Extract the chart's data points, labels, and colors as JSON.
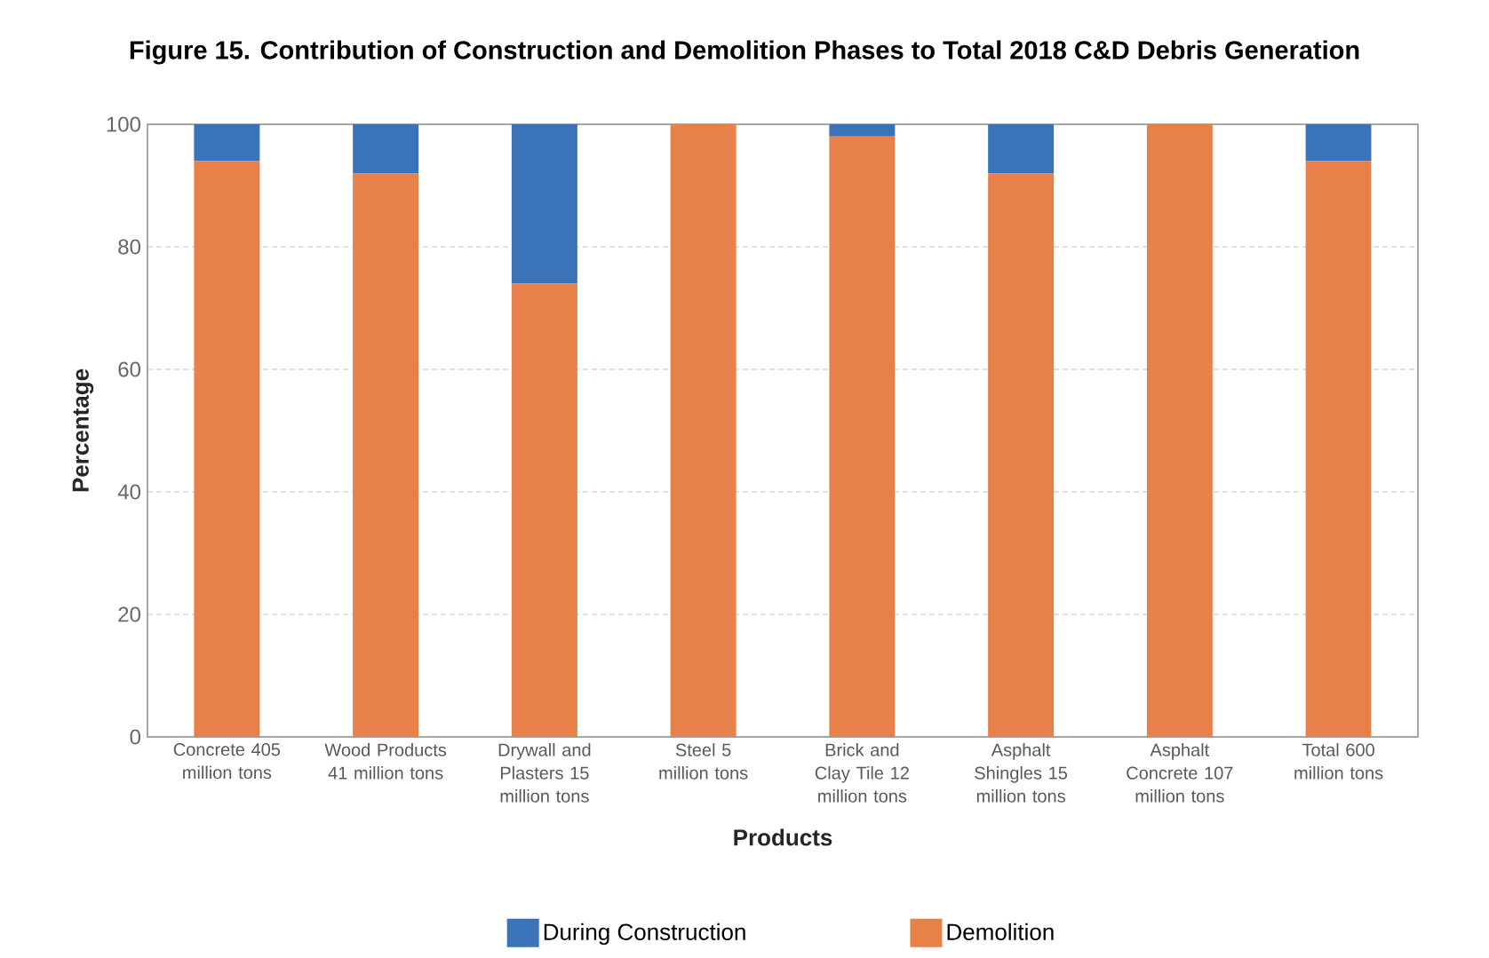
{
  "chart_data": {
    "type": "bar",
    "stacked": true,
    "title": "Figure 15. Contribution of Construction and Demolition Phases to Total 2018 C&D Debris Generation",
    "xlabel": "Products",
    "ylabel": "Percentage",
    "categories": [
      "Concrete 405 million tons",
      "Wood Products 41 million tons",
      "Drywall and Plasters 15 million tons",
      "Steel 5 million tons",
      "Brick and Clay Tile 12 million tons",
      "Asphalt Shingles 15 million tons",
      "Asphalt Concrete 107 million tons",
      "Total 600 million tons"
    ],
    "series": [
      {
        "name": "Demolition",
        "color": "#e8804a",
        "values": [
          94,
          92,
          74,
          100,
          98,
          92,
          100,
          94
        ]
      },
      {
        "name": "During Construction",
        "color": "#3a73b8",
        "values": [
          6,
          8,
          26,
          0,
          2,
          8,
          0,
          6
        ]
      }
    ],
    "ylim": [
      0,
      100
    ],
    "yticks": [
      0,
      20,
      40,
      60,
      80,
      100
    ],
    "grid": "y",
    "legend": "bottom"
  }
}
